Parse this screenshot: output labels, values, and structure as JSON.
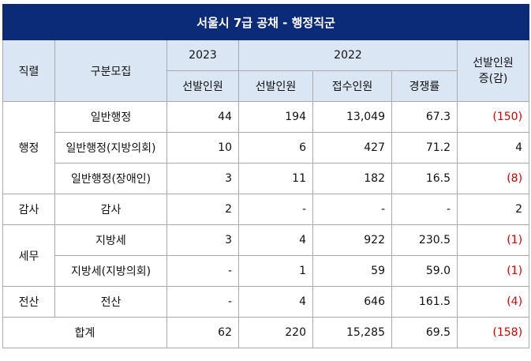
{
  "title": "서울시 7급 공채 - 행정직군",
  "headers": {
    "job": "직렬",
    "category": "구분모집",
    "y2023": "2023",
    "y2022": "2022",
    "selected_2023": "선발인원",
    "selected_2022": "선발인원",
    "applicants": "접수인원",
    "competition": "경쟁률",
    "change": "선발인원\n증(감)"
  },
  "groups": [
    {
      "job": "행정",
      "rows": [
        {
          "category": "일반행정",
          "sel2023": "44",
          "sel2022": "194",
          "applicants": "13,049",
          "rate": "67.3",
          "change": "(150)",
          "negative": true
        },
        {
          "category": "일반행정(지방의회)",
          "sel2023": "10",
          "sel2022": "6",
          "applicants": "427",
          "rate": "71.2",
          "change": "4",
          "negative": false
        },
        {
          "category": "일반행정(장애인)",
          "sel2023": "3",
          "sel2022": "11",
          "applicants": "182",
          "rate": "16.5",
          "change": "(8)",
          "negative": true
        }
      ]
    },
    {
      "job": "감사",
      "rows": [
        {
          "category": "감사",
          "sel2023": "2",
          "sel2022": "-",
          "applicants": "-",
          "rate": "-",
          "change": "2",
          "negative": false
        }
      ]
    },
    {
      "job": "세무",
      "rows": [
        {
          "category": "지방세",
          "sel2023": "3",
          "sel2022": "4",
          "applicants": "922",
          "rate": "230.5",
          "change": "(1)",
          "negative": true
        },
        {
          "category": "지방세(지방의회)",
          "sel2023": "-",
          "sel2022": "1",
          "applicants": "59",
          "rate": "59.0",
          "change": "(1)",
          "negative": true
        }
      ]
    },
    {
      "job": "전산",
      "rows": [
        {
          "category": "전산",
          "sel2023": "-",
          "sel2022": "4",
          "applicants": "646",
          "rate": "161.5",
          "change": "(4)",
          "negative": true
        }
      ]
    }
  ],
  "total": {
    "label": "합계",
    "sel2023": "62",
    "sel2022": "220",
    "applicants": "15,285",
    "rate": "69.5",
    "change": "(158)",
    "negative": true
  },
  "colors": {
    "title_bg": "#0b2a78",
    "header_bg": "#dbe6f5",
    "negative": "#d40000"
  }
}
